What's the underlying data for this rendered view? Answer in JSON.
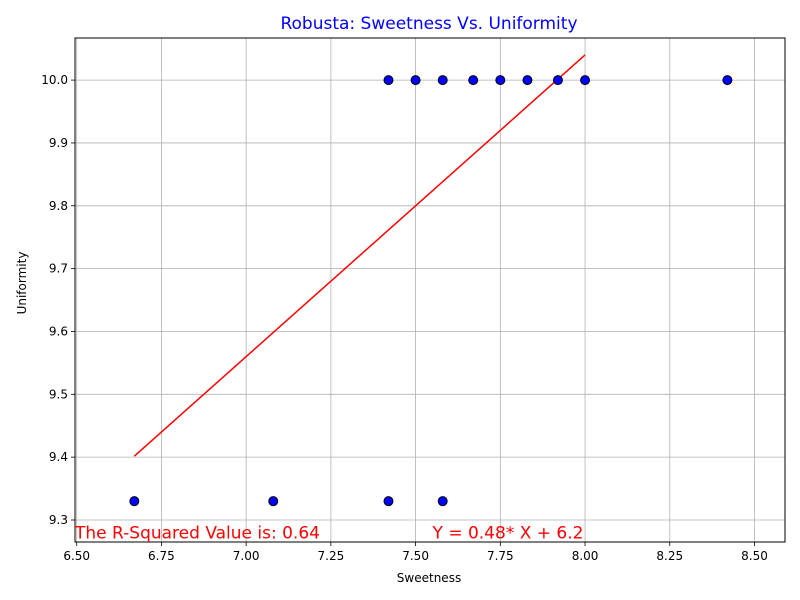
{
  "chart_data": {
    "type": "scatter",
    "title": "Robusta: Sweetness Vs. Uniformity",
    "xlabel": "Sweetness",
    "ylabel": "Uniformity",
    "xlim": [
      6.495,
      8.59
    ],
    "ylim": [
      9.265,
      10.067
    ],
    "xticks": [
      "6.50",
      "6.75",
      "7.00",
      "7.25",
      "7.50",
      "7.75",
      "8.00",
      "8.25",
      "8.50"
    ],
    "yticks": [
      "9.3",
      "9.4",
      "9.5",
      "9.6",
      "9.7",
      "9.8",
      "9.9",
      "10.0"
    ],
    "grid": true,
    "points": [
      {
        "x": 6.67,
        "y": 9.33
      },
      {
        "x": 7.08,
        "y": 9.33
      },
      {
        "x": 7.42,
        "y": 9.33
      },
      {
        "x": 7.58,
        "y": 9.33
      },
      {
        "x": 7.42,
        "y": 10.0
      },
      {
        "x": 7.5,
        "y": 10.0
      },
      {
        "x": 7.58,
        "y": 10.0
      },
      {
        "x": 7.67,
        "y": 10.0
      },
      {
        "x": 7.75,
        "y": 10.0
      },
      {
        "x": 7.83,
        "y": 10.0
      },
      {
        "x": 7.92,
        "y": 10.0
      },
      {
        "x": 8.0,
        "y": 10.0
      },
      {
        "x": 8.42,
        "y": 10.0
      }
    ],
    "regression": {
      "slope": 0.48,
      "intercept": 6.2,
      "x_range": [
        6.67,
        8.0
      ]
    },
    "annotations": [
      {
        "text": "The R-Squared Value is: 0.64",
        "x": 6.495,
        "y": 9.28
      },
      {
        "text": "Y = 0.48* X + 6.2",
        "x": 7.55,
        "y": 9.28
      }
    ],
    "colors": {
      "title": "#0000ff",
      "point_fill": "#0000ff",
      "point_edge": "#000000",
      "regression": "#ff0000",
      "annotation": "#ff0000",
      "grid": "#b0b0b0"
    }
  }
}
